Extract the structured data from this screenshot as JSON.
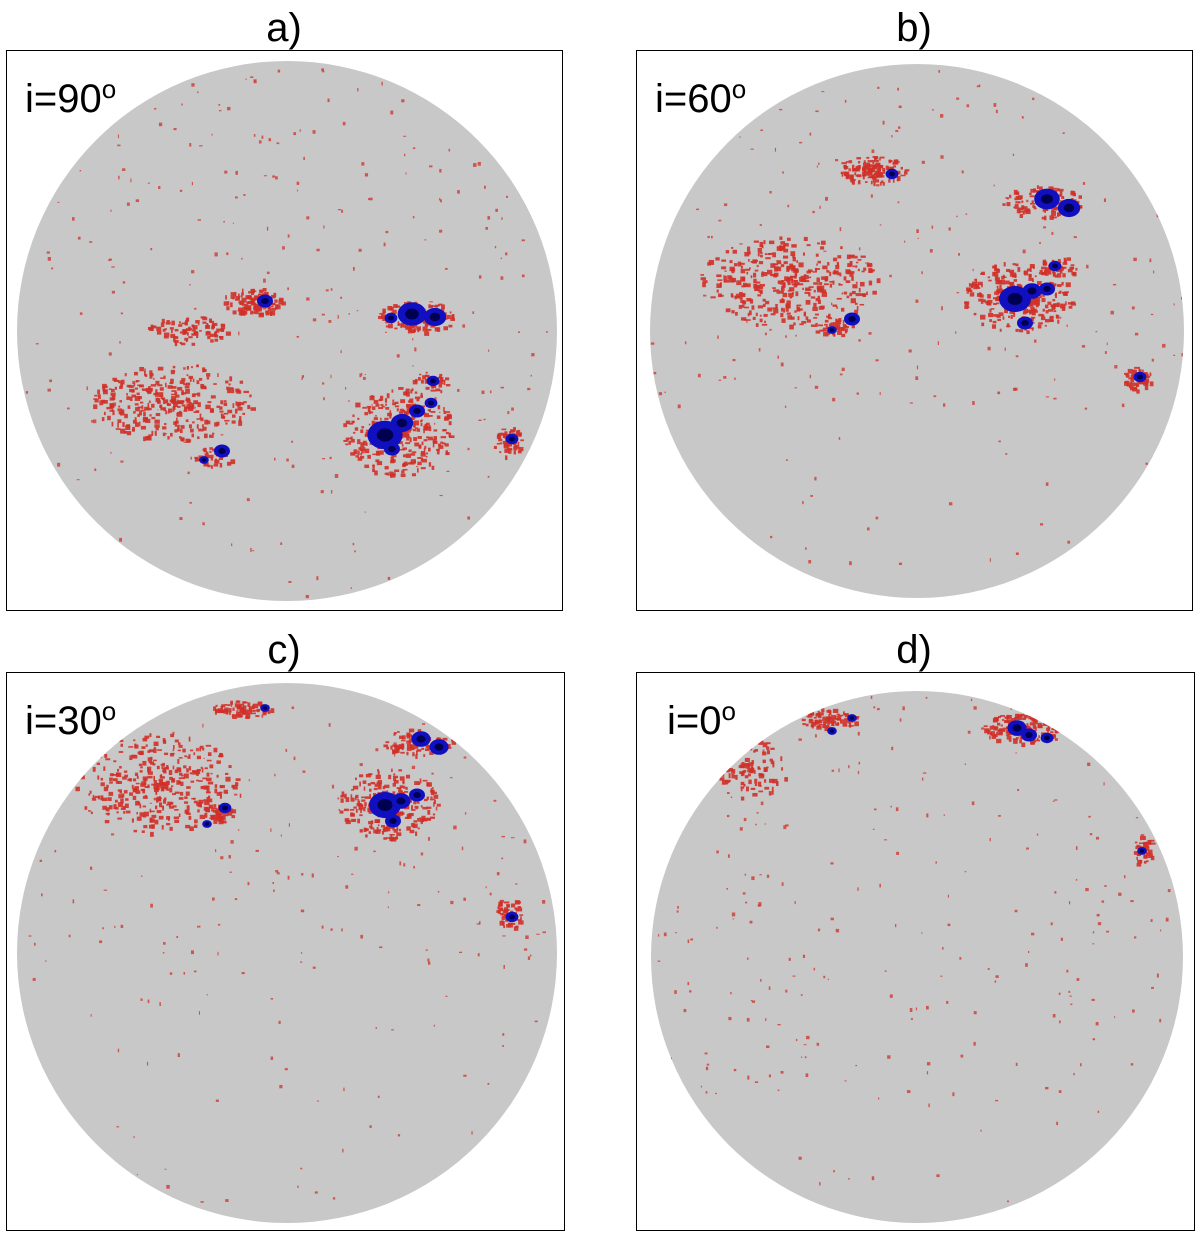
{
  "panels": [
    {
      "title": "a)",
      "label": "i=90",
      "degree": "o",
      "inclination_deg": 90
    },
    {
      "title": "b)",
      "label": "i=60",
      "degree": "o",
      "inclination_deg": 60
    },
    {
      "title": "c)",
      "label": "i=30",
      "degree": "o",
      "inclination_deg": 30
    },
    {
      "title": "d)",
      "label": "i=0",
      "degree": "o",
      "inclination_deg": 0
    }
  ],
  "colors": {
    "disk": "#c8c8c8",
    "facula": "#d03028",
    "spot_penumbra": "#1010c0",
    "spot_umbra": "#000050",
    "frame": "#000000"
  }
}
